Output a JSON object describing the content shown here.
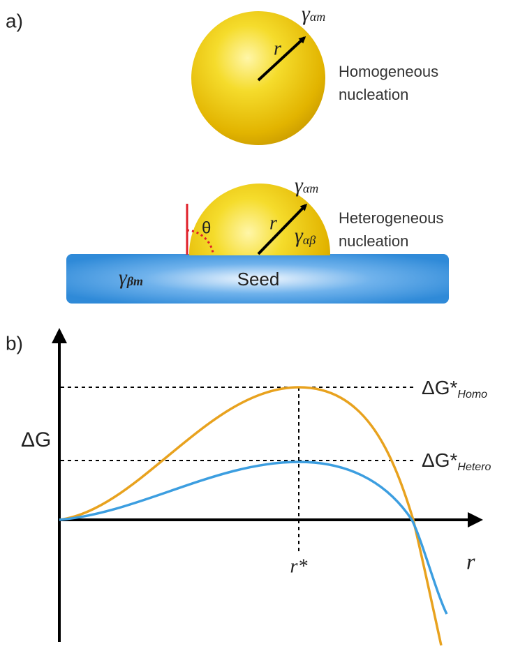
{
  "panel_a": {
    "label": "a)",
    "homogeneous": {
      "radius": "r",
      "gamma": {
        "symbol": "γ",
        "subscript": "αm"
      },
      "caption": [
        "Homogeneous",
        "nucleation"
      ]
    },
    "heterogeneous": {
      "radius": "r",
      "angle": "θ",
      "gamma_am": {
        "symbol": "γ",
        "subscript": "αm"
      },
      "gamma_ab": {
        "symbol": "γ",
        "subscript": "αβ"
      },
      "caption": [
        "Heterogeneous",
        "nucleation"
      ]
    },
    "seed": {
      "label": "Seed",
      "gamma": {
        "symbol": "γ",
        "subscript": "βm"
      }
    }
  },
  "panel_b": {
    "label": "b)",
    "y_axis": "ΔG",
    "x_axis": "r",
    "r_star": "r*",
    "homo": {
      "symbol": "ΔG*",
      "subscript": "Homo"
    },
    "hetero": {
      "symbol": "ΔG*",
      "subscript": "Hetero"
    }
  }
}
